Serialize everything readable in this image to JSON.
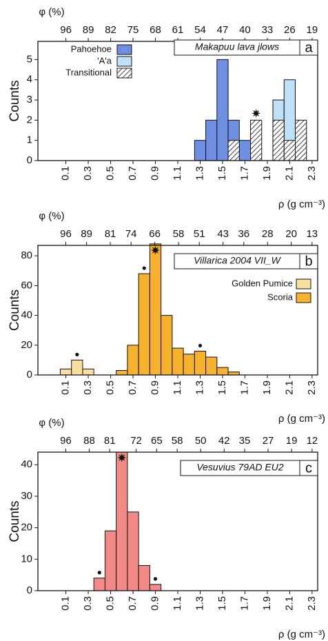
{
  "chart_data": [
    {
      "type": "histogram",
      "title": "Makapuu lava jlows",
      "panel_label": "a",
      "xlabel": "ρ (g cm⁻³)",
      "x2label": "φ (%)",
      "ylabel": "Counts",
      "bins": [
        1.25,
        1.35,
        1.45,
        1.55,
        1.65,
        1.75,
        1.85,
        1.95,
        2.05,
        2.15,
        2.25
      ],
      "series": [
        {
          "name": "Pahoehoe",
          "color": "#6e8fe2",
          "values": [
            1,
            2,
            5,
            2,
            1,
            0,
            0,
            0,
            0,
            0
          ]
        },
        {
          "name": "'A'a",
          "color": "#bfe1f8",
          "values": [
            0,
            0,
            0,
            0,
            0,
            0,
            0,
            3,
            4,
            0
          ]
        },
        {
          "name": "Transitional",
          "color": "#ffffff",
          "hatch": true,
          "values": [
            0,
            0,
            0,
            1,
            0,
            2,
            0,
            2,
            1,
            2
          ]
        }
      ],
      "stars": [
        1.8
      ],
      "dots": [],
      "xlim": [
        -0.15,
        2.35
      ],
      "xticks": [
        0.1,
        0.3,
        0.5,
        0.7,
        0.9,
        1.1,
        1.3,
        1.5,
        1.7,
        1.9,
        2.1,
        2.3
      ],
      "x2lim": [
        104.75,
        17.25
      ],
      "x2ticks": [
        96,
        89,
        82,
        75,
        68,
        61,
        54,
        47,
        40,
        33,
        26,
        19
      ],
      "ylim": [
        0,
        5.9
      ],
      "yticks": [
        0,
        1,
        2,
        3,
        4,
        5
      ],
      "legend": "upper left"
    },
    {
      "type": "histogram",
      "title": "Villarica 2004 VII_W",
      "panel_label": "b",
      "xlabel": "ρ (g cm⁻³)",
      "x2label": "φ (%)",
      "ylabel": "Counts",
      "bins": [
        0.05,
        0.15,
        0.25,
        0.35,
        0.45,
        0.55,
        0.65,
        0.75,
        0.85,
        0.95,
        1.05,
        1.15,
        1.25,
        1.35,
        1.45,
        1.55,
        1.65
      ],
      "series": [
        {
          "name": "Golden Pumice",
          "color": "#f9df9f",
          "values": [
            4,
            10,
            4,
            0,
            0,
            0,
            0,
            0,
            0,
            0,
            0,
            0,
            0,
            0,
            0,
            0
          ]
        },
        {
          "name": "Scoria",
          "color": "#f6b12e",
          "values": [
            0,
            0,
            0,
            0,
            0,
            3,
            20,
            68,
            88,
            40,
            18,
            14,
            16,
            12,
            5,
            2
          ]
        }
      ],
      "stars": [
        0.9
      ],
      "dots": [
        0.2,
        0.8,
        1.3
      ],
      "xlim": [
        -0.15,
        2.35
      ],
      "xticks": [
        0.1,
        0.3,
        0.5,
        0.7,
        0.9,
        1.1,
        1.3,
        1.5,
        1.7,
        1.9,
        2.1,
        2.3
      ],
      "x2lim": [
        105.4,
        11.1
      ],
      "x2ticks": [
        96,
        89,
        81,
        74,
        66,
        58,
        51,
        43,
        36,
        28,
        20,
        13
      ],
      "ylim": [
        0,
        87
      ],
      "yticks": [
        0,
        20,
        40,
        60,
        80
      ],
      "legend": "right"
    },
    {
      "type": "histogram",
      "title": "Vesuvius 79AD EU2",
      "panel_label": "c",
      "xlabel": "ρ (g cm⁻³)",
      "x2label": "φ (%)",
      "ylabel": "Counts",
      "bins": [
        0.35,
        0.45,
        0.55,
        0.65,
        0.75,
        0.85,
        0.95
      ],
      "series": [
        {
          "color": "#f28b87",
          "values": [
            4,
            19,
            44,
            25,
            8,
            2
          ]
        }
      ],
      "stars": [
        0.6
      ],
      "dots": [
        0.4,
        0.9
      ],
      "xlim": [
        -0.15,
        2.35
      ],
      "xticks": [
        0.1,
        0.3,
        0.5,
        0.7,
        0.9,
        1.1,
        1.3,
        1.5,
        1.7,
        1.9,
        2.1,
        2.3
      ],
      "x2lim": [
        105.5,
        10.1
      ],
      "x2ticks": [
        96,
        88,
        81,
        72,
        65,
        58,
        50,
        42,
        35,
        27,
        19,
        12
      ],
      "ylim": [
        0,
        44
      ],
      "yticks": [
        0,
        10,
        20,
        30,
        40
      ]
    }
  ]
}
